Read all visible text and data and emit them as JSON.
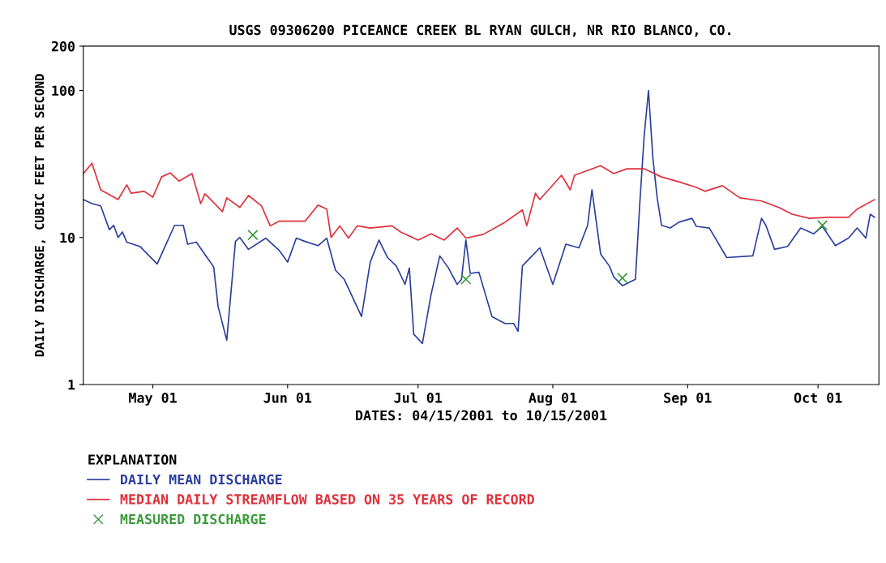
{
  "chart_data": {
    "type": "line",
    "title": "USGS 09306200 PICEANCE CREEK BL RYAN GULCH, NR RIO BLANCO, CO.",
    "xlabel": "DATES: 04/15/2001 to 10/15/2001",
    "ylabel": "DAILY DISCHARGE, CUBIC FEET PER SECOND",
    "legend_title": "EXPLANATION",
    "legend": "bottom",
    "grid": false,
    "log": "y",
    "xlim": [
      "2001-04-15",
      "2001-10-15"
    ],
    "ylim": [
      1,
      200
    ],
    "xticks": [
      {
        "value": "2001-05-01",
        "label": "May 01"
      },
      {
        "value": "2001-06-01",
        "label": "Jun 01"
      },
      {
        "value": "2001-07-01",
        "label": "Jul 01"
      },
      {
        "value": "2001-08-01",
        "label": "Aug 01"
      },
      {
        "value": "2001-09-01",
        "label": "Sep 01"
      },
      {
        "value": "2001-10-01",
        "label": "Oct 01"
      }
    ],
    "yticks": [
      1,
      10,
      100,
      200
    ],
    "series": [
      {
        "name": "DAILY MEAN DISCHARGE",
        "marker": "none",
        "color": "#2b3f9e",
        "x": [
          "2001-04-15",
          "2001-04-17",
          "2001-04-19",
          "2001-04-21",
          "2001-04-22",
          "2001-04-23",
          "2001-04-24",
          "2001-04-25",
          "2001-04-28",
          "2001-05-02",
          "2001-05-03",
          "2001-05-06",
          "2001-05-08",
          "2001-05-09",
          "2001-05-11",
          "2001-05-15",
          "2001-05-16",
          "2001-05-18",
          "2001-05-20",
          "2001-05-21",
          "2001-05-23",
          "2001-05-27",
          "2001-05-30",
          "2001-06-01",
          "2001-06-03",
          "2001-06-05",
          "2001-06-08",
          "2001-06-10",
          "2001-06-12",
          "2001-06-14",
          "2001-06-18",
          "2001-06-20",
          "2001-06-22",
          "2001-06-24",
          "2001-06-26",
          "2001-06-28",
          "2001-06-29",
          "2001-06-30",
          "2001-07-02",
          "2001-07-04",
          "2001-07-06",
          "2001-07-08",
          "2001-07-10",
          "2001-07-11",
          "2001-07-12",
          "2001-07-13",
          "2001-07-15",
          "2001-07-18",
          "2001-07-21",
          "2001-07-23",
          "2001-07-24",
          "2001-07-25",
          "2001-07-29",
          "2001-08-01",
          "2001-08-04",
          "2001-08-07",
          "2001-08-09",
          "2001-08-10",
          "2001-08-12",
          "2001-08-14",
          "2001-08-15",
          "2001-08-17",
          "2001-08-20",
          "2001-08-21",
          "2001-08-22",
          "2001-08-23",
          "2001-08-24",
          "2001-08-25",
          "2001-08-26",
          "2001-08-28",
          "2001-08-30",
          "2001-09-02",
          "2001-09-03",
          "2001-09-06",
          "2001-09-10",
          "2001-09-16",
          "2001-09-18",
          "2001-09-19",
          "2001-09-21",
          "2001-09-24",
          "2001-09-27",
          "2001-09-30",
          "2001-10-02",
          "2001-10-05",
          "2001-10-08",
          "2001-10-10",
          "2001-10-12",
          "2001-10-13",
          "2001-10-14"
        ],
        "values": [
          18.1,
          17.0,
          16.4,
          11.3,
          12.1,
          10.0,
          10.9,
          9.3,
          8.7,
          6.6,
          7.7,
          12.1,
          12.1,
          9.0,
          9.3,
          6.3,
          3.4,
          2.0,
          9.4,
          10.0,
          8.3,
          9.9,
          8.2,
          6.8,
          9.9,
          9.4,
          8.8,
          9.9,
          6.0,
          5.2,
          2.9,
          6.8,
          9.6,
          7.3,
          6.4,
          4.8,
          6.2,
          2.2,
          1.9,
          4.1,
          7.5,
          6.2,
          4.8,
          5.2,
          9.6,
          5.7,
          5.8,
          2.9,
          2.6,
          2.6,
          2.3,
          6.4,
          8.5,
          4.8,
          9.0,
          8.5,
          12.1,
          21.1,
          7.7,
          6.4,
          5.4,
          4.7,
          5.2,
          17.0,
          48.6,
          100,
          35.0,
          18.6,
          12.1,
          11.6,
          12.7,
          13.5,
          11.9,
          11.6,
          7.3,
          7.5,
          13.5,
          12.1,
          8.3,
          8.7,
          11.6,
          10.6,
          11.9,
          8.8,
          9.9,
          11.6,
          9.9,
          14.4,
          13.7
        ]
      },
      {
        "name": "MEDIAN DAILY STREAMFLOW BASED ON 35 YEARS OF RECORD",
        "marker": "none",
        "color": "#e0303a",
        "x": [
          "2001-04-15",
          "2001-04-17",
          "2001-04-19",
          "2001-04-23",
          "2001-04-25",
          "2001-04-26",
          "2001-04-29",
          "2001-05-01",
          "2001-05-03",
          "2001-05-05",
          "2001-05-07",
          "2001-05-10",
          "2001-05-12",
          "2001-05-13",
          "2001-05-17",
          "2001-05-18",
          "2001-05-21",
          "2001-05-23",
          "2001-05-26",
          "2001-05-28",
          "2001-05-30",
          "2001-06-05",
          "2001-06-08",
          "2001-06-10",
          "2001-06-11",
          "2001-06-13",
          "2001-06-15",
          "2001-06-17",
          "2001-06-20",
          "2001-06-25",
          "2001-06-27",
          "2001-07-01",
          "2001-07-04",
          "2001-07-07",
          "2001-07-10",
          "2001-07-12",
          "2001-07-16",
          "2001-07-21",
          "2001-07-25",
          "2001-07-26",
          "2001-07-28",
          "2001-07-29",
          "2001-08-03",
          "2001-08-05",
          "2001-08-06",
          "2001-08-12",
          "2001-08-15",
          "2001-08-18",
          "2001-08-22",
          "2001-08-26",
          "2001-08-30",
          "2001-09-03",
          "2001-09-05",
          "2001-09-09",
          "2001-09-13",
          "2001-09-18",
          "2001-09-22",
          "2001-09-25",
          "2001-09-29",
          "2001-10-03",
          "2001-10-08",
          "2001-10-10",
          "2001-10-14"
        ],
        "values": [
          27.2,
          32.0,
          21.1,
          18.1,
          22.8,
          20.0,
          20.6,
          18.8,
          25.8,
          27.5,
          24.2,
          27.2,
          17.0,
          19.8,
          15.0,
          18.6,
          16.0,
          19.3,
          16.4,
          12.0,
          12.9,
          12.9,
          16.6,
          15.6,
          10.0,
          12.0,
          9.9,
          12.0,
          11.6,
          12.0,
          10.9,
          9.6,
          10.6,
          9.6,
          11.6,
          9.9,
          10.5,
          12.7,
          15.4,
          12.0,
          20.0,
          18.1,
          26.5,
          21.1,
          26.5,
          30.8,
          27.2,
          29.3,
          29.3,
          25.8,
          23.9,
          21.9,
          20.6,
          22.5,
          18.6,
          17.7,
          16.0,
          14.4,
          13.5,
          13.7,
          13.7,
          15.6,
          18.1
        ]
      },
      {
        "name": "MEASURED DISCHARGE",
        "type": "scatter",
        "marker": "cross",
        "color": "#3a9a3a",
        "x": [
          "2001-05-24",
          "2001-07-12",
          "2001-08-17",
          "2001-10-02"
        ],
        "values": [
          10.4,
          5.2,
          5.3,
          12.1
        ]
      }
    ]
  }
}
